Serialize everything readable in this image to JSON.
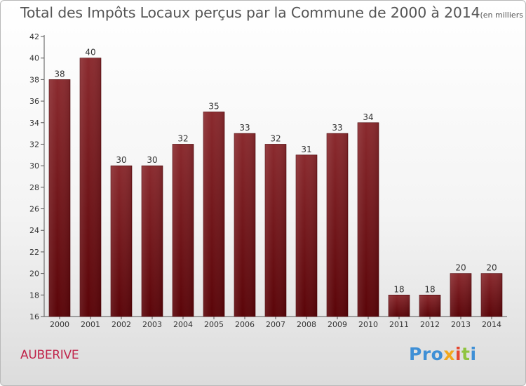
{
  "chart_data": {
    "type": "bar",
    "title": "Total des Impôts Locaux perçus par la Commune de 2000 à 2014",
    "unit": "(en milliers d'€)",
    "categories": [
      "2000",
      "2001",
      "2002",
      "2003",
      "2004",
      "2005",
      "2006",
      "2007",
      "2008",
      "2009",
      "2010",
      "2011",
      "2012",
      "2013",
      "2014"
    ],
    "values": [
      38,
      40,
      30,
      30,
      32,
      35,
      33,
      32,
      31,
      33,
      34,
      18,
      18,
      20,
      20
    ],
    "ylim": [
      16,
      42
    ],
    "yticks": [
      16,
      18,
      20,
      22,
      24,
      26,
      28,
      30,
      32,
      34,
      36,
      38,
      40,
      42
    ],
    "xlabel": "",
    "ylabel": "",
    "grid": false,
    "bar_color": "#7a1d20"
  },
  "footer": {
    "commune": "AUBERIVE",
    "logo_parts": [
      "Pro",
      "x",
      "i",
      "t",
      "i"
    ]
  }
}
